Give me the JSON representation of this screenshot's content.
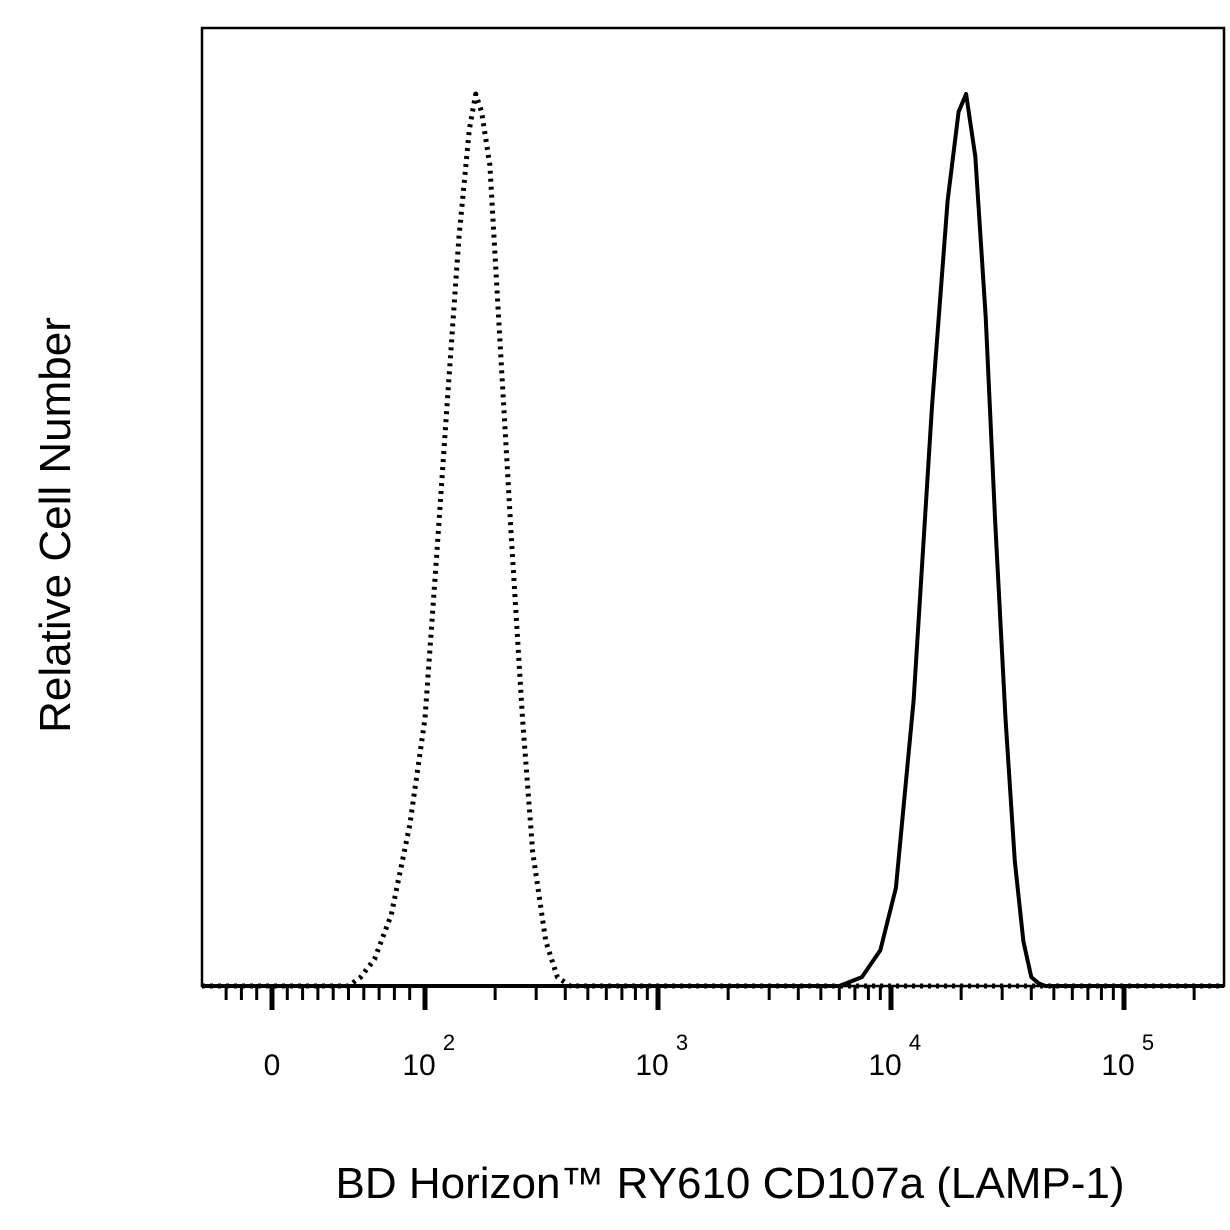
{
  "chart_data": {
    "type": "line",
    "title": "",
    "xlabel": "BD Horizon™ RY610 CD107a (LAMP-1)",
    "ylabel": "Relative Cell Number",
    "x_scale": "biexponential",
    "xlim": [
      -30,
      200000
    ],
    "ylim": [
      0,
      100
    ],
    "grid": false,
    "legend": "none",
    "x_ticks": [
      {
        "value": 0,
        "base": "0",
        "exp": ""
      },
      {
        "value": 100,
        "base": "10",
        "exp": "2"
      },
      {
        "value": 1000,
        "base": "10",
        "exp": "3"
      },
      {
        "value": 10000,
        "base": "10",
        "exp": "4"
      },
      {
        "value": 100000,
        "base": "10",
        "exp": "5"
      }
    ],
    "series": [
      {
        "style": "dotted",
        "x": [
          50,
          58,
          67,
          78,
          90,
          100,
          112,
          125,
          140,
          155,
          165,
          175,
          190,
          210,
          235,
          262,
          290,
          330,
          370,
          420
        ],
        "y": [
          0,
          1,
          3,
          8,
          18,
          30,
          48,
          66,
          84,
          96,
          100,
          98,
          92,
          72,
          50,
          30,
          15,
          5,
          1,
          0
        ]
      },
      {
        "style": "solid",
        "x": [
          6000,
          7500,
          9000,
          10500,
          12500,
          15000,
          17500,
          19500,
          21000,
          23000,
          25500,
          28000,
          31000,
          34000,
          37000,
          40000,
          43000,
          46000
        ],
        "y": [
          0,
          1,
          4,
          11,
          32,
          65,
          88,
          98,
          100,
          93,
          75,
          52,
          30,
          14,
          5,
          1,
          0.3,
          0
        ]
      }
    ]
  }
}
